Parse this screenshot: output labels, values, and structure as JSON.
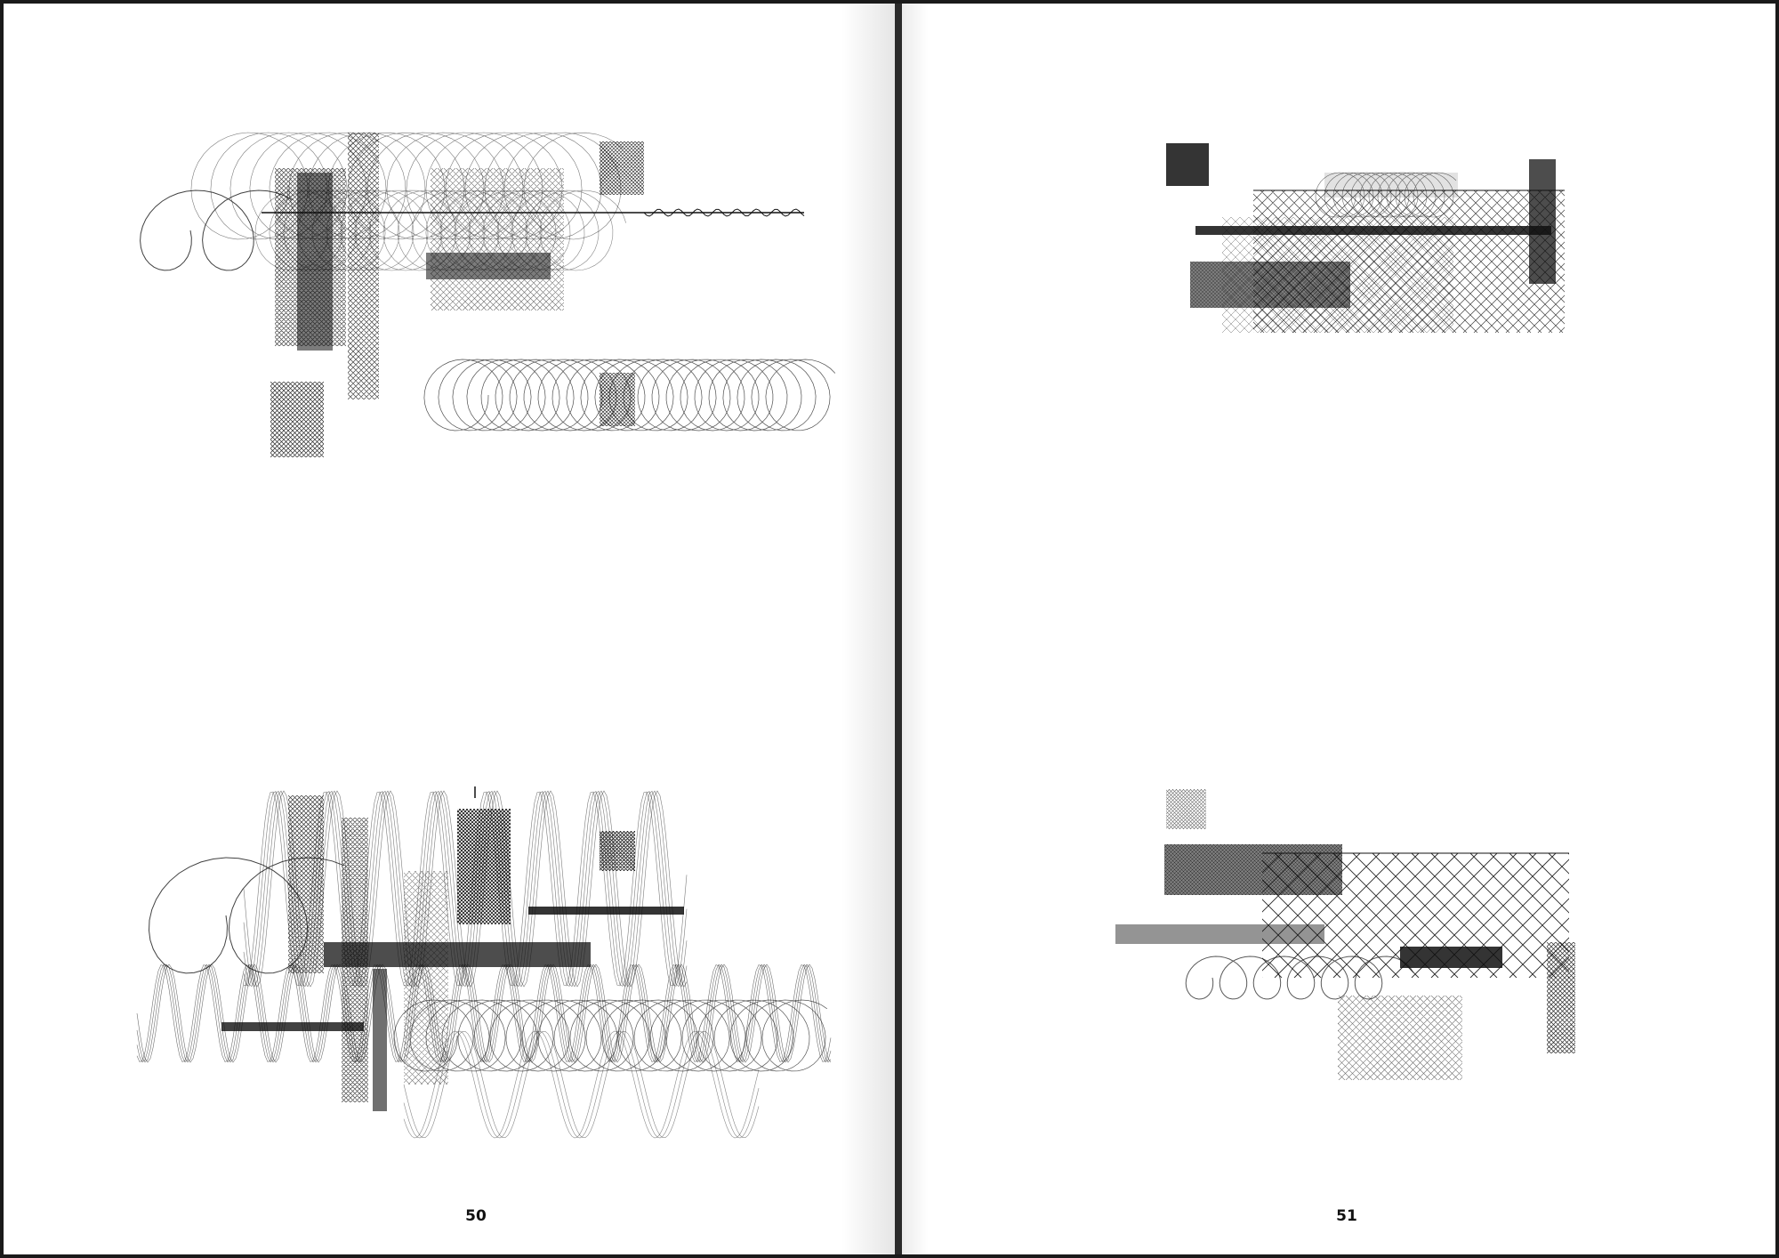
{
  "spread": {
    "left_page": {
      "page_number": "50"
    },
    "right_page": {
      "page_number": "51"
    }
  },
  "figures": [
    {
      "id": "left-top",
      "description_name": "plotter-drawing-helix-composition"
    },
    {
      "id": "left-bottom",
      "description_name": "plotter-drawing-wave-composition"
    },
    {
      "id": "right-top",
      "description_name": "plotter-drawing-mesh-blocks"
    },
    {
      "id": "right-bottom",
      "description_name": "plotter-drawing-lattice-blocks"
    }
  ],
  "colors": {
    "ink": "#111111",
    "paper": "#ffffff",
    "binding": "#1a1a1a"
  }
}
